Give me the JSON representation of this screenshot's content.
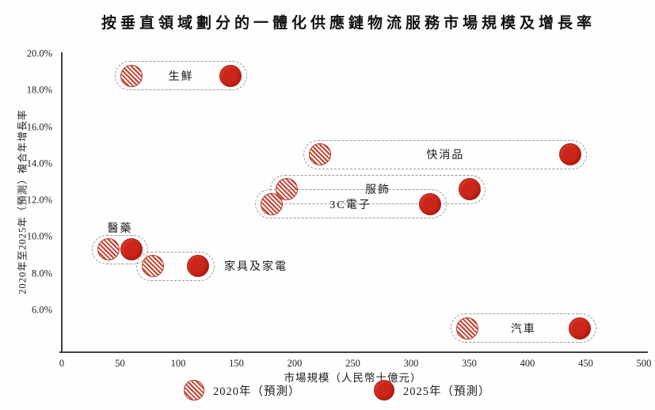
{
  "chart_data": {
    "type": "scatter",
    "title": "按垂直領域劃分的一體化供應鏈物流服務市場規模及增長率",
    "xlabel": "市場規模（人民幣十億元）",
    "ylabel": "2020年至2025年（預測）複合年增長率",
    "xlim": [
      0,
      500
    ],
    "ylim_pct": [
      4.4,
      20.0
    ],
    "x_ticks": [
      "0",
      "50",
      "100",
      "150",
      "200",
      "250",
      "300",
      "350",
      "400",
      "450",
      "500"
    ],
    "y_ticks": [
      "20.0%",
      "18.0%",
      "16.0%",
      "14.0%",
      "12.0%",
      "10.0%",
      "8.0%",
      "6.0%"
    ],
    "grid": false,
    "legend_position": "bottom",
    "groups": [
      {
        "label": "生鮮",
        "cagr_pct": 18.8,
        "size_2020": 60,
        "size_2025": 145,
        "label_pos": "inside"
      },
      {
        "label": "快消品",
        "cagr_pct": 14.5,
        "size_2020": 222,
        "size_2025": 437,
        "label_pos": "inside"
      },
      {
        "label": "服飾",
        "cagr_pct": 12.6,
        "size_2020": 193,
        "size_2025": 350,
        "label_pos": "inside"
      },
      {
        "label": "3C電子",
        "cagr_pct": 11.8,
        "size_2020": 180,
        "size_2025": 316,
        "label_pos": "inside"
      },
      {
        "label": "醫藥",
        "cagr_pct": 9.3,
        "size_2020": 40,
        "size_2025": 60,
        "label_pos": "above"
      },
      {
        "label": "家具及家電",
        "cagr_pct": 8.4,
        "size_2020": 78,
        "size_2025": 117,
        "label_pos": "right"
      },
      {
        "label": "汽車",
        "cagr_pct": 5.0,
        "size_2020": 348,
        "size_2025": 445,
        "label_pos": "inside"
      }
    ],
    "legend": [
      {
        "label": "2020年（預測）",
        "marker": "hatched-circle",
        "color": "#c44434"
      },
      {
        "label": "2025年（預測）",
        "marker": "solid-circle",
        "color": "#ca2619"
      }
    ]
  },
  "colors": {
    "dot_solid": "#ca2619",
    "dot_hatch_stroke": "#c44434",
    "pill_dash": "#9d9792",
    "axis": "#3f3f3f",
    "text": "#1c1c1c"
  }
}
